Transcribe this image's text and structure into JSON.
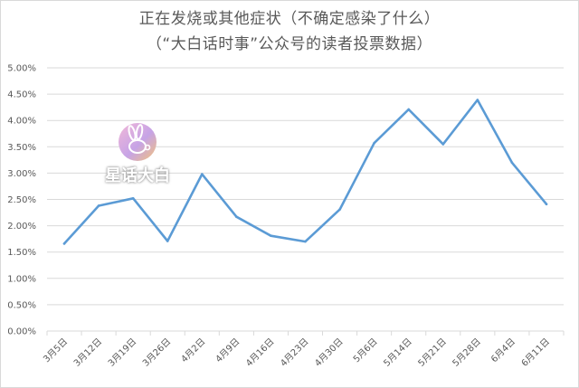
{
  "chart_data": {
    "type": "line",
    "title": "正在发烧或其他症状（不确定感染了什么）",
    "subtitle": "（“大白话时事”公众号的读者投票数据）",
    "xlabel": "",
    "ylabel": "",
    "categories": [
      "3月5日",
      "3月12日",
      "3月19日",
      "3月26日",
      "4月2日",
      "4月9日",
      "4月16日",
      "4月23日",
      "4月30日",
      "5月6日",
      "5月14日",
      "5月21日",
      "5月28日",
      "6月4日",
      "6月11日"
    ],
    "series": [
      {
        "values": [
          1.66,
          2.38,
          2.52,
          1.71,
          2.98,
          2.17,
          1.81,
          1.7,
          2.31,
          3.57,
          4.21,
          3.55,
          4.39,
          3.2,
          2.41
        ],
        "color": "#5b9bd5"
      }
    ],
    "ylim": [
      0,
      5
    ],
    "ytick_step": 0.5,
    "ytick_labels": [
      "0.00%",
      "0.50%",
      "1.00%",
      "1.50%",
      "2.00%",
      "2.50%",
      "3.00%",
      "3.50%",
      "4.00%",
      "4.50%",
      "5.00%"
    ],
    "grid": true,
    "gridline_color": "#d9d9d9",
    "legend": "none"
  },
  "watermark": {
    "text": "星话大白",
    "icon": "rabbit-logo-icon"
  }
}
